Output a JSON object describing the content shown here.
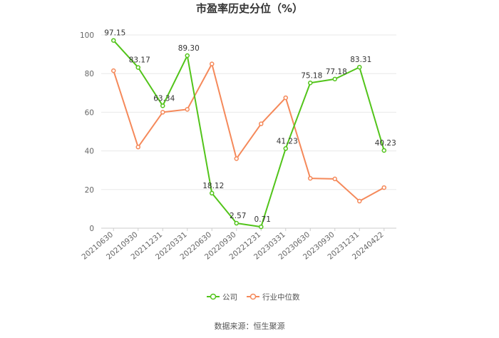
{
  "chart_data": {
    "type": "line",
    "title": "市盈率历史分位（%）",
    "xlabel": "",
    "ylabel": "",
    "ylim": [
      0,
      100
    ],
    "yticks": [
      0,
      20,
      40,
      60,
      80,
      100
    ],
    "grid": true,
    "legend_position": "bottom",
    "categories": [
      "20210630",
      "20210930",
      "20211231",
      "20220331",
      "20220630",
      "20220930",
      "20221231",
      "20230331",
      "20230630",
      "20230930",
      "20231231",
      "20240422"
    ],
    "series": [
      {
        "name": "公司",
        "color": "#52c41a",
        "values": [
          97.15,
          83.17,
          63.34,
          89.3,
          18.12,
          2.57,
          0.71,
          41.23,
          75.18,
          77.18,
          83.31,
          40.23
        ],
        "labels": [
          "97.15",
          "83.17",
          "63.34",
          "89.30",
          "18.12",
          "2.57",
          "0.71",
          "41.23",
          "75.18",
          "77.18",
          "83.31",
          "40.23"
        ]
      },
      {
        "name": "行业中位数",
        "color": "#f5895a",
        "values": [
          81.5,
          42.0,
          60.0,
          61.5,
          85.0,
          36.0,
          54.0,
          67.5,
          25.8,
          25.5,
          14.0,
          21.0
        ]
      }
    ]
  },
  "source": "数据来源：恒生聚源"
}
